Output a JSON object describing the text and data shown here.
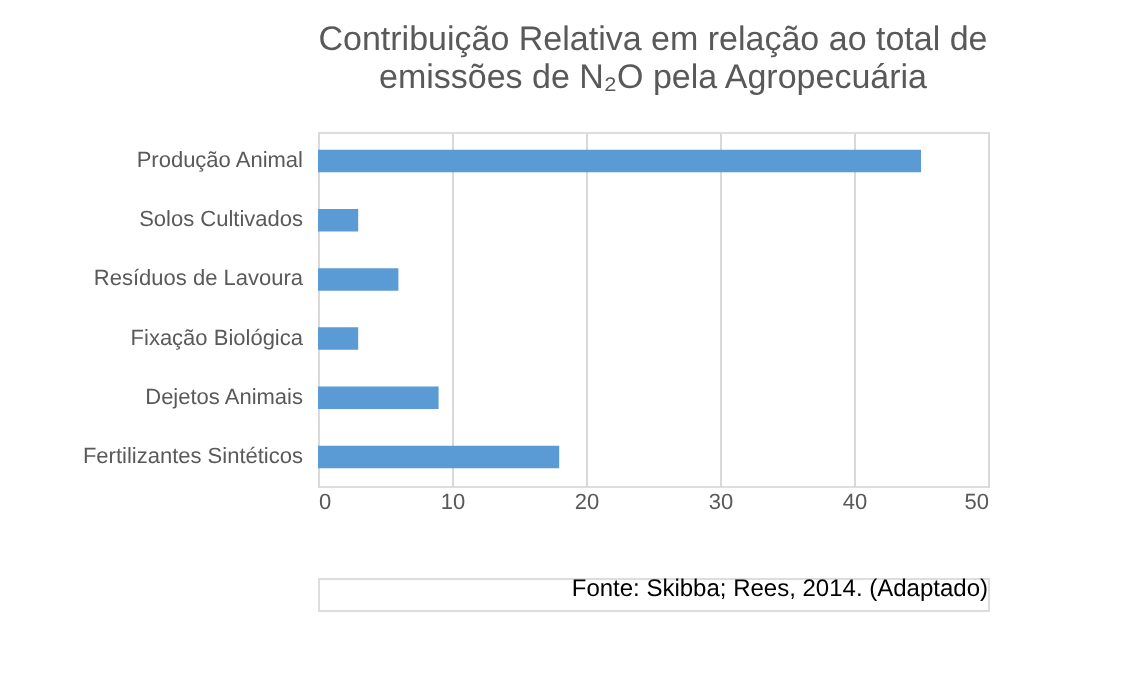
{
  "chart_data": {
    "type": "bar",
    "orientation": "horizontal",
    "title": [
      "Contribuição Relativa em relação ao total de",
      "emissões de N₂O pela Agropecuária"
    ],
    "categories": [
      "Produção Animal",
      "Solos Cultivados",
      "Resíduos de Lavoura",
      "Fixação Biológica",
      "Dejetos Animais",
      "Fertilizantes Sintéticos"
    ],
    "values": [
      45,
      3,
      6,
      3,
      9,
      18
    ],
    "color": "#5b9bd5",
    "xlim": [
      0,
      50
    ],
    "xticks": [
      0,
      10,
      20,
      30,
      40,
      50
    ],
    "grid": "x",
    "annotations": [
      "Fonte: Skibba; Rees, 2014. (Adaptado)"
    ]
  }
}
